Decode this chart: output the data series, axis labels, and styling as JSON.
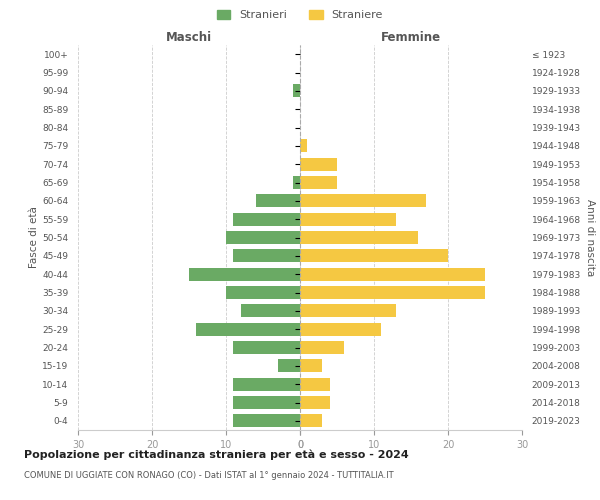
{
  "age_groups_bottom_to_top": [
    "0-4",
    "5-9",
    "10-14",
    "15-19",
    "20-24",
    "25-29",
    "30-34",
    "35-39",
    "40-44",
    "45-49",
    "50-54",
    "55-59",
    "60-64",
    "65-69",
    "70-74",
    "75-79",
    "80-84",
    "85-89",
    "90-94",
    "95-99",
    "100+"
  ],
  "birth_years_bottom_to_top": [
    "2019-2023",
    "2014-2018",
    "2009-2013",
    "2004-2008",
    "1999-2003",
    "1994-1998",
    "1989-1993",
    "1984-1988",
    "1979-1983",
    "1974-1978",
    "1969-1973",
    "1964-1968",
    "1959-1963",
    "1954-1958",
    "1949-1953",
    "1944-1948",
    "1939-1943",
    "1934-1938",
    "1929-1933",
    "1924-1928",
    "≤ 1923"
  ],
  "males_bottom_to_top": [
    9,
    9,
    9,
    3,
    9,
    14,
    8,
    10,
    15,
    9,
    10,
    9,
    6,
    1,
    0,
    0,
    0,
    0,
    1,
    0,
    0
  ],
  "females_bottom_to_top": [
    3,
    4,
    4,
    3,
    6,
    11,
    13,
    25,
    25,
    20,
    16,
    13,
    17,
    5,
    5,
    1,
    0,
    0,
    0,
    0,
    0
  ],
  "male_color": "#6aaa64",
  "female_color": "#f5c842",
  "bar_height": 0.72,
  "xlim": 30,
  "title": "Popolazione per cittadinanza straniera per età e sesso - 2024",
  "subtitle": "COMUNE DI UGGIATE CON RONAGO (CO) - Dati ISTAT al 1° gennaio 2024 - TUTTITALIA.IT",
  "ylabel_left": "Fasce di età",
  "ylabel_right": "Anni di nascita",
  "xlabel_left": "Maschi",
  "xlabel_right": "Femmine",
  "legend_male": "Stranieri",
  "legend_female": "Straniere",
  "background_color": "#ffffff",
  "grid_color": "#cccccc",
  "grid_linestyle": "--",
  "tick_color": "#999999",
  "label_color": "#555555",
  "title_color": "#222222",
  "subtitle_color": "#555555",
  "dashed_line_color": "#aaaaaa"
}
